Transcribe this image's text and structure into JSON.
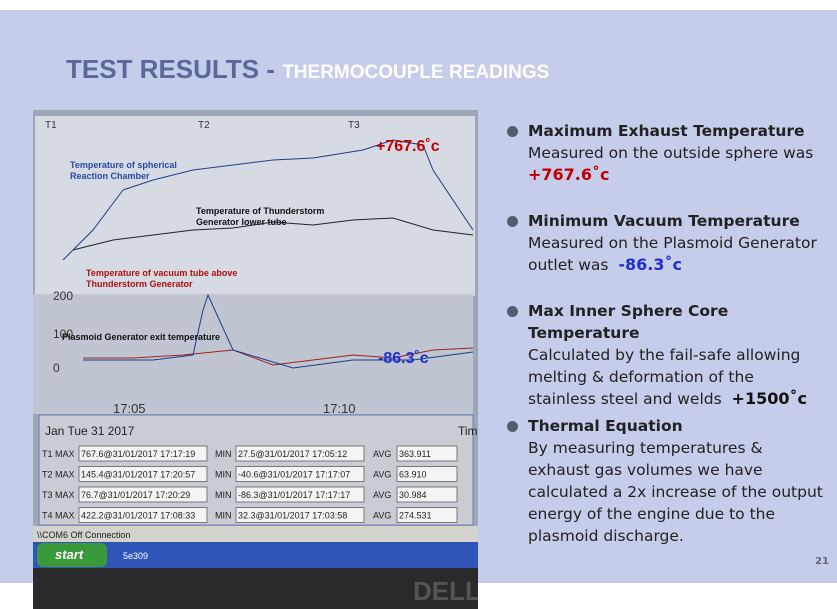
{
  "header": {
    "title": "TEST RESULTS -",
    "subtitle": "THERMOCOUPLE READINGS"
  },
  "photo": {
    "channels": [
      "T1",
      "T2",
      "T3"
    ],
    "axis_labels": [
      "200",
      "100",
      "0"
    ],
    "time_labels": [
      "17:05",
      "17:10"
    ],
    "date": "Jan Tue 31 2017",
    "time_header": "Tim",
    "table": {
      "rows": [
        [
          "T1 MAX",
          "767.6@31/01/2017 17:17:19",
          "MIN",
          "27.5@31/01/2017 17:05:12",
          "AVG",
          "363.911"
        ],
        [
          "T2 MAX",
          "145.4@31/01/2017 17:20:57",
          "MIN",
          "-40.6@31/01/2017 17:17:07",
          "AVG",
          "63.910"
        ],
        [
          "T3 MAX",
          "76.7@31/01/2017 17:20:29",
          "MIN",
          "-86.3@31/01/2017 17:17:17",
          "AVG",
          "30.984"
        ],
        [
          "T4 MAX",
          "422.2@31/01/2017 17:08:33",
          "MIN",
          "32.3@31/01/2017 17:03:58",
          "AVG",
          "274.531"
        ]
      ]
    },
    "status": "\\\\COM6  Off Connection",
    "start": "start",
    "task": "5e309",
    "annotations": {
      "max": "+767.6˚c",
      "chamber": "Temperature of spherical Reaction Chamber",
      "lower_tube": "Temperature of  Thunderstorm Generator lower tube",
      "vacuum_tube": "Temperature of vacuum tube above Thunderstorm Generator",
      "plasmoid": "Plasmoid Generator exit temperature",
      "min": "-86.3˚c"
    }
  },
  "bullets": [
    {
      "head": "Maximum Exhaust Temperature",
      "text": "Measured on the outside sphere was",
      "value": "+767.6˚c"
    },
    {
      "head": "Minimum Vacuum Temperature",
      "text": "Measured on the Plasmoid Generator outlet was",
      "value": "-86.3˚c"
    },
    {
      "head": "Max Inner Sphere Core Temperature",
      "text": "Calculated by the fail-safe allowing melting & deformation of the stainless steel and welds",
      "value": "+1500˚c"
    },
    {
      "head": "Thermal Equation",
      "text": "By measuring temperatures & exhaust gas volumes we have calculated a 2x increase of the output energy of the engine due to the plasmoid discharge."
    }
  ],
  "page_number": "21"
}
